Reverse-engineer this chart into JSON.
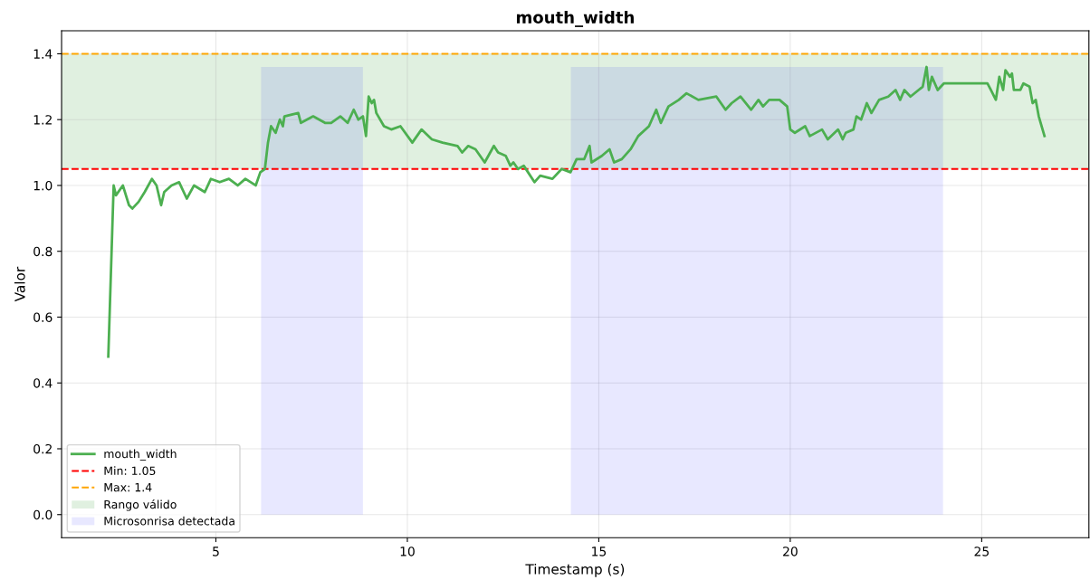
{
  "chart_data": {
    "type": "line",
    "title": "mouth_width",
    "xlabel": "Timestamp (s)",
    "ylabel": "Valor",
    "xlim": [
      0.97,
      27.8
    ],
    "xticks": [
      5,
      10,
      15,
      20,
      25
    ],
    "ylim": [
      -0.07,
      1.47
    ],
    "yticks": [
      {
        "value": 0,
        "label": "0.0"
      },
      0.2,
      0.4,
      0.6,
      0.8,
      {
        "value": 1,
        "label": "1.0"
      },
      1.2,
      1.4
    ],
    "grid": true,
    "legend": "bottom left",
    "ref_lines": [
      {
        "axis": "y",
        "value": 1.05,
        "label": "Min: 1.05",
        "color": "#ff0000",
        "line_style": "dashed"
      },
      {
        "axis": "y",
        "value": 1.4,
        "label": "Max: 1.4",
        "color": "#ffa500",
        "line_style": "dashed"
      }
    ],
    "bands": [
      {
        "axis": "y",
        "from": 1.05,
        "to": 1.4,
        "label": "Rango válido",
        "color": "#008000"
      }
    ],
    "series": [
      {
        "name": "mouth_width",
        "color": "#4caf50",
        "x": [
          2.19,
          2.33,
          2.39,
          2.57,
          2.73,
          2.82,
          2.98,
          3.14,
          3.33,
          3.45,
          3.57,
          3.65,
          3.84,
          4.04,
          4.24,
          4.43,
          4.71,
          4.87,
          5.1,
          5.34,
          5.57,
          5.77,
          6.04,
          6.16,
          6.28,
          6.36,
          6.44,
          6.56,
          6.67,
          6.75,
          6.79,
          7.15,
          7.22,
          7.54,
          7.85,
          8.01,
          8.25,
          8.44,
          8.6,
          8.72,
          8.84,
          8.92,
          8.99,
          9.07,
          9.13,
          9.19,
          9.39,
          9.58,
          9.82,
          10.13,
          10.37,
          10.64,
          10.92,
          11.31,
          11.43,
          11.59,
          11.78,
          12.02,
          12.26,
          12.37,
          12.57,
          12.69,
          12.77,
          12.89,
          13.04,
          13.32,
          13.47,
          13.79,
          14.03,
          14.26,
          14.42,
          14.62,
          14.76,
          14.81,
          15.08,
          15.28,
          15.4,
          15.6,
          15.83,
          16.03,
          16.31,
          16.5,
          16.62,
          16.82,
          17.09,
          17.29,
          17.6,
          18.07,
          18.31,
          18.47,
          18.7,
          18.98,
          19.17,
          19.29,
          19.45,
          19.72,
          19.92,
          20.0,
          20.12,
          20.39,
          20.51,
          20.83,
          20.98,
          21.25,
          21.37,
          21.45,
          21.65,
          21.73,
          21.85,
          22.0,
          22.12,
          22.32,
          22.56,
          22.75,
          22.87,
          22.98,
          23.14,
          23.46,
          23.56,
          23.62,
          23.7,
          23.85,
          24.01,
          25.15,
          25.24,
          25.37,
          25.46,
          25.56,
          25.62,
          25.74,
          25.79,
          25.84,
          26.01,
          26.09,
          26.25,
          26.33,
          26.41,
          26.49,
          26.64
        ],
        "values": [
          0.48,
          1.0,
          0.97,
          1.0,
          0.94,
          0.93,
          0.95,
          0.98,
          1.02,
          1.0,
          0.94,
          0.98,
          1.0,
          1.01,
          0.96,
          1.0,
          0.98,
          1.02,
          1.01,
          1.02,
          1.0,
          1.02,
          1.0,
          1.04,
          1.05,
          1.13,
          1.18,
          1.16,
          1.2,
          1.18,
          1.21,
          1.22,
          1.19,
          1.21,
          1.19,
          1.19,
          1.21,
          1.19,
          1.23,
          1.2,
          1.21,
          1.15,
          1.27,
          1.25,
          1.26,
          1.22,
          1.18,
          1.17,
          1.18,
          1.13,
          1.17,
          1.14,
          1.13,
          1.12,
          1.1,
          1.12,
          1.11,
          1.07,
          1.12,
          1.1,
          1.09,
          1.06,
          1.07,
          1.05,
          1.06,
          1.01,
          1.03,
          1.02,
          1.05,
          1.04,
          1.08,
          1.08,
          1.12,
          1.07,
          1.09,
          1.11,
          1.07,
          1.08,
          1.11,
          1.15,
          1.18,
          1.23,
          1.19,
          1.24,
          1.26,
          1.28,
          1.26,
          1.27,
          1.23,
          1.25,
          1.27,
          1.23,
          1.26,
          1.24,
          1.26,
          1.26,
          1.24,
          1.17,
          1.16,
          1.18,
          1.15,
          1.17,
          1.14,
          1.17,
          1.14,
          1.16,
          1.17,
          1.21,
          1.2,
          1.25,
          1.22,
          1.26,
          1.27,
          1.29,
          1.26,
          1.29,
          1.27,
          1.3,
          1.36,
          1.29,
          1.33,
          1.29,
          1.31,
          1.31,
          1.29,
          1.26,
          1.33,
          1.29,
          1.35,
          1.33,
          1.34,
          1.29,
          1.29,
          1.31,
          1.3,
          1.25,
          1.26,
          1.21,
          1.15
        ]
      },
      {
        "name": "Microsonrisa detectada",
        "type": "area",
        "color": "#0000ff",
        "x": [
          6.18,
          8.84
        ],
        "values": [
          1.36,
          1.36
        ]
      },
      {
        "type": "area",
        "color": "#0000ff",
        "x": [
          14.27,
          23.99
        ],
        "values": [
          1.36,
          1.36
        ]
      }
    ]
  }
}
